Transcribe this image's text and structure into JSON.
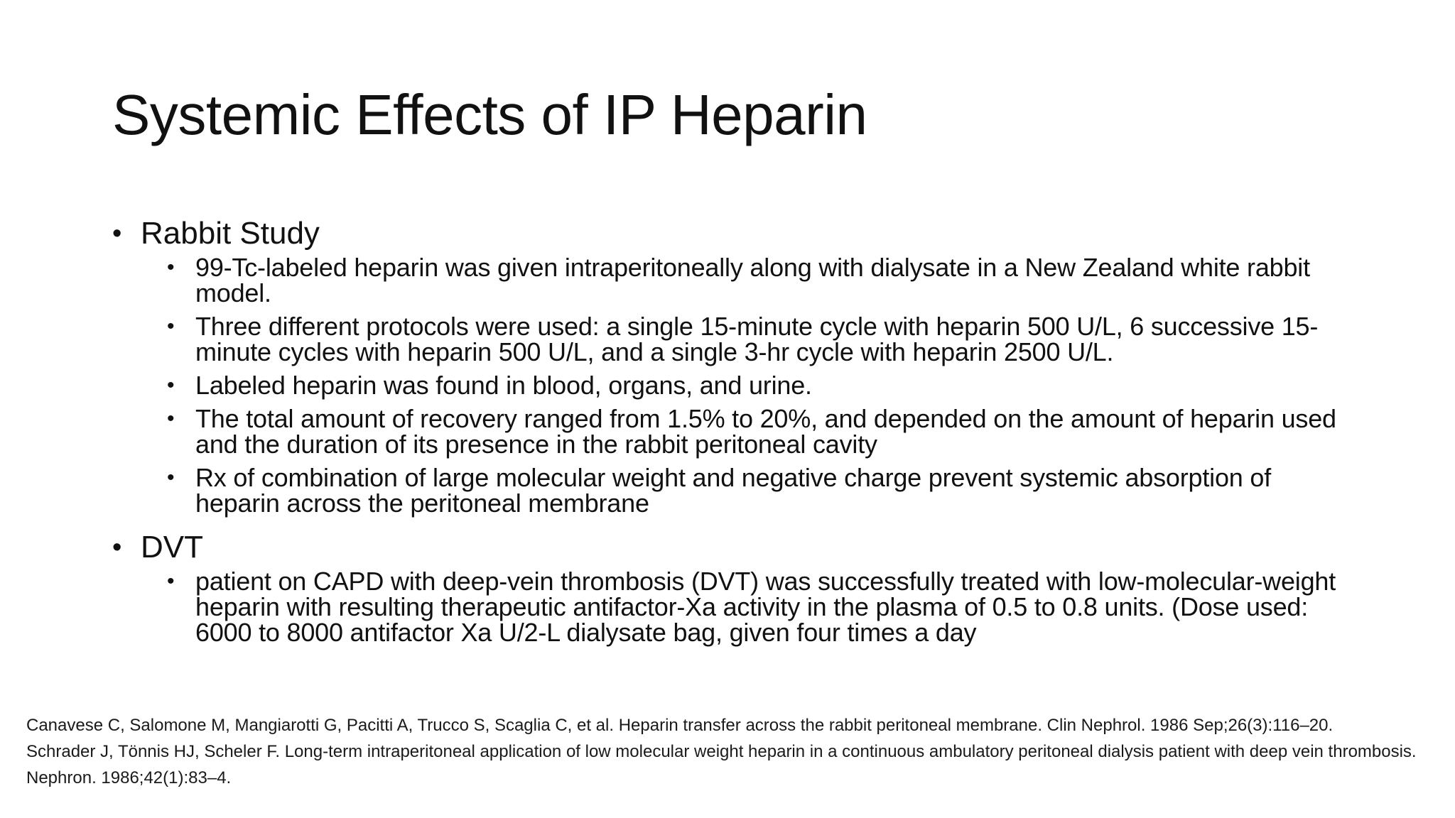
{
  "slide": {
    "title": "Systemic Effects of IP Heparin",
    "sections": [
      {
        "heading": "Rabbit Study",
        "items": [
          "99-Tc-labeled heparin was given intraperitoneally along with dialysate in a New Zealand white rabbit model.",
          "Three different protocols were used: a single 15-minute cycle with heparin 500 U/L, 6 successive 15-minute cycles with heparin 500 U/L, and a single 3-hr cycle with heparin 2500 U/L.",
          "Labeled heparin was found in blood, organs, and urine.",
          "The total amount of recovery ranged from 1.5% to 20%, and depended on the amount of heparin used and the duration of its presence in the rabbit peritoneal cavity",
          "Rx of combination of large molecular weight and negative charge prevent systemic absorption of heparin across the peritoneal membrane"
        ]
      },
      {
        "heading": "DVT",
        "items": [
          "patient on CAPD with deep-vein thrombosis (DVT) was successfully treated with low-molecular-weight heparin with resulting therapeutic antifactor-Xa activity in the plasma of 0.5 to 0.8 units. (Dose used: 6000 to 8000 antifactor Xa U/2-L dialysate bag, given four times a day"
        ]
      }
    ],
    "bullet_glyph": "•",
    "references": [
      "Canavese C, Salomone M, Mangiarotti G, Pacitti A, Trucco S, Scaglia C, et al. Heparin transfer across the rabbit peritoneal membrane. Clin Nephrol. 1986 Sep;26(3):116–20.",
      "Schrader J, Tönnis HJ, Scheler F. Long-term intraperitoneal application of low molecular weight heparin in a continuous ambulatory peritoneal dialysis patient with deep vein thrombosis. Nephron. 1986;42(1):83–4."
    ]
  }
}
